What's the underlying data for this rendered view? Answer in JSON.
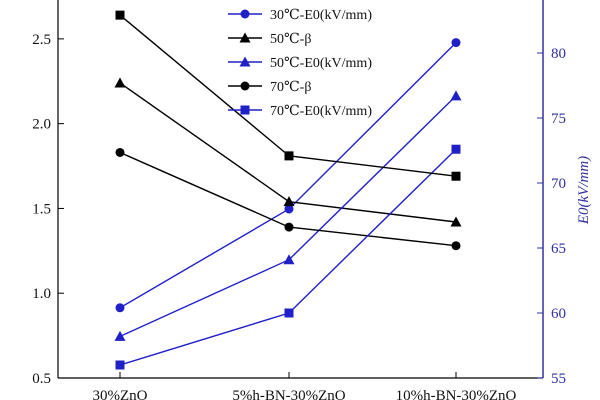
{
  "chart_data": {
    "type": "line",
    "title": "",
    "categories": [
      "30%ZnO",
      "5%h-BN-30%ZnO",
      "10%h-BN-30%ZnO"
    ],
    "xlabel": "",
    "ylabel_left": "",
    "ylabel_right": "E0(kV/mm)",
    "ylim_left": [
      0.5,
      2.8
    ],
    "ylim_right": [
      55,
      85
    ],
    "yticks_left": [
      "0.5",
      "1.0",
      "1.5",
      "2.0",
      "2.5"
    ],
    "yticks_right": [
      "55",
      "60",
      "65",
      "70",
      "75",
      "80"
    ],
    "legend_position": "top-center",
    "grid": false,
    "series": [
      {
        "name": "30℃-E0(kV/mm)",
        "axis": "right",
        "color": "#2020c8",
        "marker": "circle",
        "values": [
          60.4,
          68.0,
          80.8
        ]
      },
      {
        "name": "50℃-β",
        "axis": "left",
        "color": "#000000",
        "marker": "triangle",
        "values": [
          2.24,
          1.54,
          1.42
        ]
      },
      {
        "name": "50℃-E0(kV/mm)",
        "axis": "right",
        "color": "#2020c8",
        "marker": "triangle",
        "values": [
          58.2,
          64.1,
          76.7
        ]
      },
      {
        "name": "70℃-β",
        "axis": "left",
        "color": "#000000",
        "marker": "circle",
        "values": [
          1.83,
          1.39,
          1.28
        ]
      },
      {
        "name": "70℃-E0(kV/mm)",
        "axis": "right",
        "color": "#2020c8",
        "marker": "square",
        "values": [
          56.0,
          60.0,
          72.6
        ]
      },
      {
        "name": "",
        "axis": "left",
        "color": "#000000",
        "marker": "square",
        "values": [
          2.64,
          1.81,
          1.69
        ]
      }
    ]
  }
}
